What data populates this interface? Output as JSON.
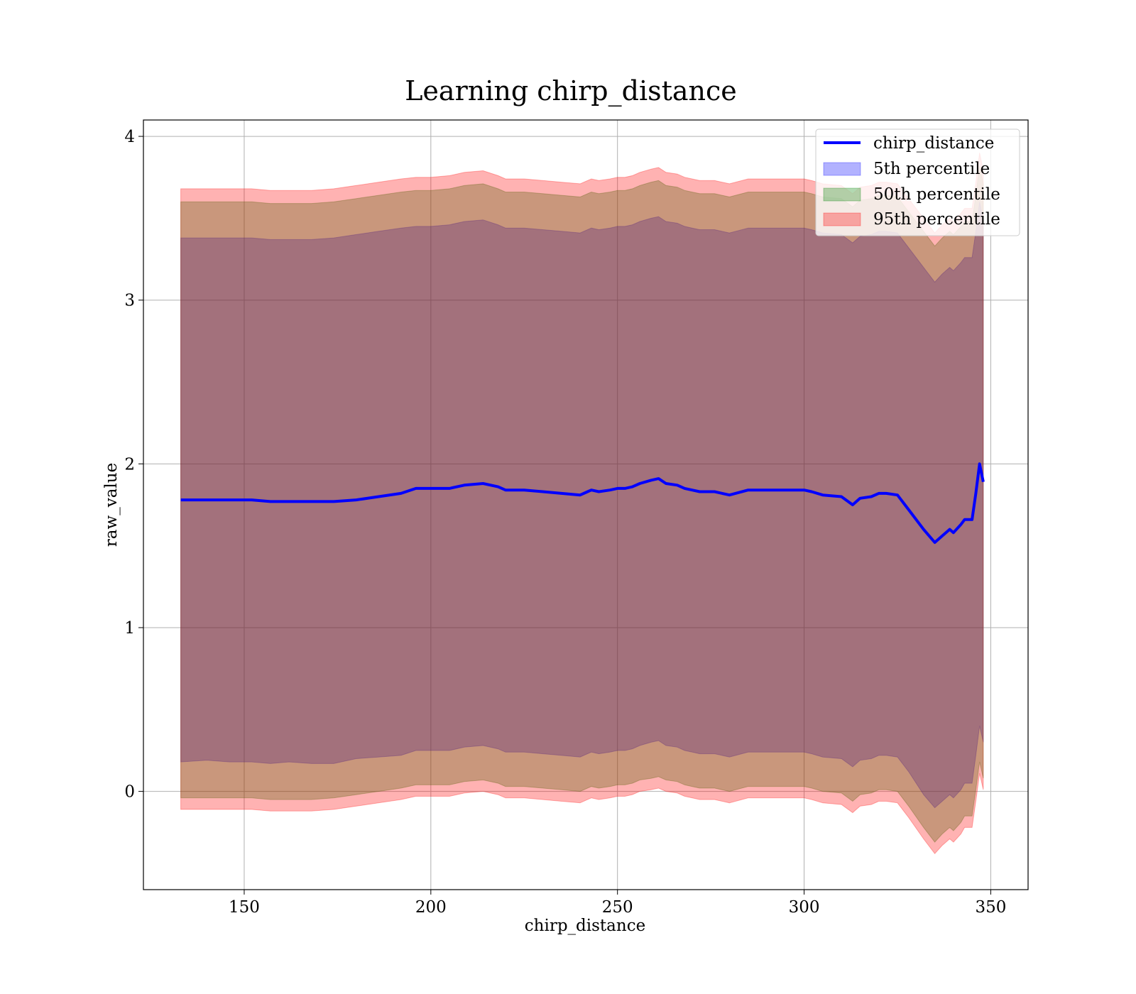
{
  "chart_data": {
    "type": "area",
    "title": "Learning chirp_distance",
    "xlabel": "chirp_distance",
    "ylabel": "raw_value",
    "xlim": [
      123,
      360
    ],
    "ylim": [
      -0.6,
      4.1
    ],
    "xticks": [
      150,
      200,
      250,
      300,
      350
    ],
    "yticks": [
      0,
      1,
      2,
      3,
      4
    ],
    "grid": true,
    "legend_position": "top-right",
    "colors": {
      "line": "#0000ff",
      "band_5th": "#0000ff",
      "band_50th": "#008000",
      "band_95th": "#ff0000"
    },
    "x": [
      133,
      140,
      146,
      152,
      157,
      162,
      168,
      174,
      180,
      186,
      192,
      196,
      200,
      205,
      209,
      214,
      218,
      220,
      222,
      225,
      230,
      235,
      240,
      242,
      243,
      245,
      248,
      250,
      252,
      254,
      256,
      259,
      261,
      263,
      266,
      268,
      270,
      272,
      274,
      276,
      280,
      285,
      290,
      293,
      296,
      300,
      302,
      305,
      310,
      313,
      315,
      318,
      320,
      322,
      325,
      328,
      332,
      335,
      337,
      339,
      340,
      342,
      343,
      345,
      346,
      347,
      348
    ],
    "series": [
      {
        "name": "chirp_distance",
        "role": "line",
        "values": [
          1.78,
          1.78,
          1.78,
          1.78,
          1.77,
          1.77,
          1.77,
          1.77,
          1.78,
          1.8,
          1.82,
          1.85,
          1.85,
          1.85,
          1.87,
          1.88,
          1.86,
          1.84,
          1.84,
          1.84,
          1.83,
          1.82,
          1.81,
          1.83,
          1.84,
          1.83,
          1.84,
          1.85,
          1.85,
          1.86,
          1.88,
          1.9,
          1.91,
          1.88,
          1.87,
          1.85,
          1.84,
          1.83,
          1.83,
          1.83,
          1.81,
          1.84,
          1.84,
          1.84,
          1.84,
          1.84,
          1.83,
          1.81,
          1.8,
          1.75,
          1.79,
          1.8,
          1.82,
          1.82,
          1.81,
          1.72,
          1.6,
          1.52,
          1.56,
          1.6,
          1.58,
          1.63,
          1.66,
          1.66,
          1.82,
          2.0,
          1.89
        ]
      },
      {
        "name": "5th percentile",
        "role": "band",
        "lower": [
          0.18,
          0.19,
          0.18,
          0.18,
          0.17,
          0.18,
          0.17,
          0.17,
          0.2,
          0.21,
          0.22,
          0.25,
          0.25,
          0.25,
          0.27,
          0.28,
          0.26,
          0.24,
          0.24,
          0.24,
          0.23,
          0.22,
          0.21,
          0.23,
          0.24,
          0.23,
          0.24,
          0.25,
          0.25,
          0.26,
          0.28,
          0.3,
          0.31,
          0.28,
          0.27,
          0.25,
          0.24,
          0.23,
          0.23,
          0.23,
          0.21,
          0.24,
          0.24,
          0.24,
          0.24,
          0.24,
          0.23,
          0.21,
          0.2,
          0.15,
          0.19,
          0.2,
          0.22,
          0.22,
          0.21,
          0.12,
          -0.02,
          -0.1,
          -0.06,
          -0.02,
          -0.04,
          0.01,
          0.05,
          0.05,
          0.22,
          0.4,
          0.3
        ],
        "upper": [
          3.38,
          3.38,
          3.38,
          3.38,
          3.37,
          3.37,
          3.37,
          3.38,
          3.4,
          3.42,
          3.44,
          3.45,
          3.45,
          3.46,
          3.48,
          3.49,
          3.46,
          3.44,
          3.44,
          3.44,
          3.43,
          3.42,
          3.41,
          3.43,
          3.44,
          3.43,
          3.44,
          3.45,
          3.45,
          3.46,
          3.48,
          3.5,
          3.51,
          3.48,
          3.47,
          3.45,
          3.44,
          3.43,
          3.43,
          3.43,
          3.41,
          3.44,
          3.44,
          3.44,
          3.44,
          3.44,
          3.43,
          3.41,
          3.4,
          3.35,
          3.39,
          3.4,
          3.42,
          3.42,
          3.41,
          3.32,
          3.2,
          3.11,
          3.16,
          3.2,
          3.18,
          3.23,
          3.26,
          3.26,
          3.42,
          3.6,
          3.49
        ]
      },
      {
        "name": "50th percentile",
        "role": "band",
        "lower": [
          -0.04,
          -0.04,
          -0.04,
          -0.04,
          -0.05,
          -0.05,
          -0.05,
          -0.04,
          -0.02,
          0.0,
          0.02,
          0.04,
          0.04,
          0.04,
          0.06,
          0.07,
          0.05,
          0.03,
          0.03,
          0.03,
          0.02,
          0.01,
          0.0,
          0.02,
          0.03,
          0.02,
          0.03,
          0.04,
          0.04,
          0.05,
          0.07,
          0.08,
          0.09,
          0.07,
          0.06,
          0.04,
          0.03,
          0.02,
          0.02,
          0.02,
          0.0,
          0.03,
          0.03,
          0.03,
          0.03,
          0.03,
          0.02,
          0.0,
          -0.01,
          -0.06,
          -0.02,
          -0.01,
          0.01,
          0.01,
          0.0,
          -0.09,
          -0.22,
          -0.31,
          -0.26,
          -0.22,
          -0.24,
          -0.19,
          -0.15,
          -0.15,
          0.01,
          0.18,
          0.08
        ],
        "upper": [
          3.6,
          3.6,
          3.6,
          3.6,
          3.59,
          3.59,
          3.59,
          3.6,
          3.62,
          3.64,
          3.66,
          3.67,
          3.67,
          3.68,
          3.7,
          3.71,
          3.68,
          3.66,
          3.66,
          3.66,
          3.65,
          3.64,
          3.63,
          3.65,
          3.66,
          3.65,
          3.66,
          3.67,
          3.67,
          3.68,
          3.7,
          3.72,
          3.73,
          3.7,
          3.69,
          3.67,
          3.66,
          3.65,
          3.65,
          3.65,
          3.63,
          3.66,
          3.66,
          3.66,
          3.66,
          3.66,
          3.65,
          3.63,
          3.62,
          3.57,
          3.61,
          3.62,
          3.64,
          3.64,
          3.63,
          3.54,
          3.42,
          3.33,
          3.38,
          3.42,
          3.4,
          3.45,
          3.48,
          3.48,
          3.64,
          3.82,
          3.71
        ]
      },
      {
        "name": "95th percentile",
        "role": "band",
        "lower": [
          -0.11,
          -0.11,
          -0.11,
          -0.11,
          -0.12,
          -0.12,
          -0.12,
          -0.11,
          -0.09,
          -0.07,
          -0.05,
          -0.03,
          -0.03,
          -0.03,
          -0.01,
          0.0,
          -0.02,
          -0.04,
          -0.04,
          -0.04,
          -0.05,
          -0.06,
          -0.07,
          -0.05,
          -0.04,
          -0.05,
          -0.04,
          -0.03,
          -0.03,
          -0.02,
          0.0,
          0.01,
          0.02,
          0.0,
          -0.01,
          -0.03,
          -0.04,
          -0.05,
          -0.05,
          -0.05,
          -0.07,
          -0.04,
          -0.04,
          -0.04,
          -0.04,
          -0.04,
          -0.05,
          -0.07,
          -0.08,
          -0.13,
          -0.09,
          -0.08,
          -0.06,
          -0.06,
          -0.07,
          -0.16,
          -0.29,
          -0.38,
          -0.33,
          -0.29,
          -0.31,
          -0.26,
          -0.22,
          -0.22,
          -0.06,
          0.11,
          0.01
        ],
        "upper": [
          3.68,
          3.68,
          3.68,
          3.68,
          3.67,
          3.67,
          3.67,
          3.68,
          3.7,
          3.72,
          3.74,
          3.75,
          3.75,
          3.76,
          3.78,
          3.79,
          3.76,
          3.74,
          3.74,
          3.74,
          3.73,
          3.72,
          3.71,
          3.73,
          3.74,
          3.73,
          3.74,
          3.75,
          3.75,
          3.76,
          3.78,
          3.8,
          3.81,
          3.78,
          3.77,
          3.75,
          3.74,
          3.73,
          3.73,
          3.73,
          3.71,
          3.74,
          3.74,
          3.74,
          3.74,
          3.74,
          3.73,
          3.71,
          3.7,
          3.65,
          3.69,
          3.7,
          3.72,
          3.72,
          3.71,
          3.62,
          3.5,
          3.41,
          3.46,
          3.5,
          3.48,
          3.53,
          3.56,
          3.56,
          3.72,
          3.9,
          3.79
        ]
      }
    ]
  }
}
